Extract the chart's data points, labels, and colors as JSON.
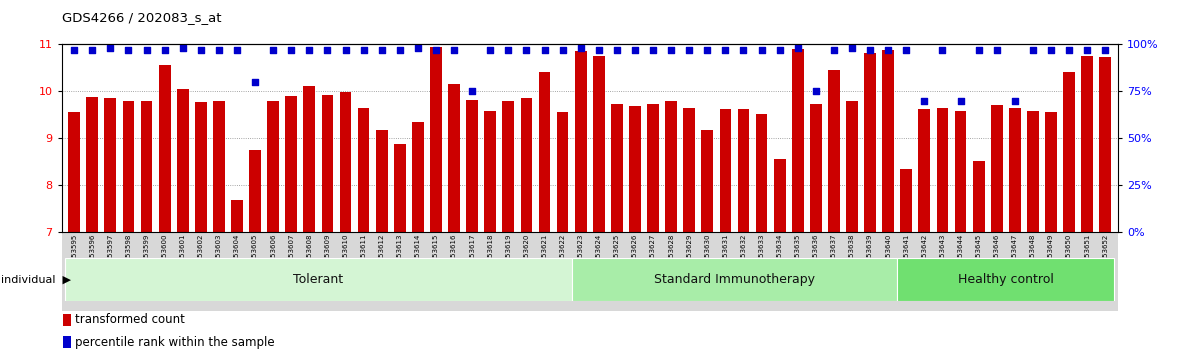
{
  "title": "GDS4266 / 202083_s_at",
  "samples": [
    "GSM553595",
    "GSM553596",
    "GSM553597",
    "GSM553598",
    "GSM553599",
    "GSM553600",
    "GSM553601",
    "GSM553602",
    "GSM553603",
    "GSM553604",
    "GSM553605",
    "GSM553606",
    "GSM553607",
    "GSM553608",
    "GSM553609",
    "GSM553610",
    "GSM553611",
    "GSM553612",
    "GSM553613",
    "GSM553614",
    "GSM553615",
    "GSM553616",
    "GSM553617",
    "GSM553618",
    "GSM553619",
    "GSM553620",
    "GSM553621",
    "GSM553622",
    "GSM553623",
    "GSM553624",
    "GSM553625",
    "GSM553626",
    "GSM553627",
    "GSM553628",
    "GSM553629",
    "GSM553630",
    "GSM553631",
    "GSM553632",
    "GSM553633",
    "GSM553634",
    "GSM553635",
    "GSM553636",
    "GSM553637",
    "GSM553638",
    "GSM553639",
    "GSM553640",
    "GSM553641",
    "GSM553642",
    "GSM553643",
    "GSM553644",
    "GSM553645",
    "GSM553646",
    "GSM553647",
    "GSM553648",
    "GSM553649",
    "GSM553650",
    "GSM553651",
    "GSM553652"
  ],
  "bar_heights": [
    9.55,
    9.88,
    9.86,
    9.78,
    9.78,
    10.55,
    10.05,
    9.76,
    9.78,
    7.68,
    8.75,
    9.8,
    9.9,
    10.12,
    9.92,
    9.98,
    9.65,
    9.18,
    8.88,
    9.35,
    10.95,
    10.15,
    9.82,
    9.58,
    9.8,
    9.85,
    10.4,
    9.55,
    10.85,
    10.75,
    9.72,
    9.68,
    9.72,
    9.8,
    9.65,
    9.18,
    9.62,
    9.62,
    9.52,
    8.55,
    10.9,
    9.72,
    10.45,
    9.78,
    10.82,
    10.88,
    8.35,
    9.62,
    9.65,
    9.58,
    8.52,
    9.7,
    9.65,
    9.58,
    9.55,
    10.4,
    10.75,
    10.72
  ],
  "percentile_values": [
    97,
    97,
    98,
    97,
    97,
    97,
    98,
    97,
    97,
    97,
    80,
    97,
    97,
    97,
    97,
    97,
    97,
    97,
    97,
    98,
    97,
    97,
    75,
    97,
    97,
    97,
    97,
    97,
    98,
    97,
    97,
    97,
    97,
    97,
    97,
    97,
    97,
    97,
    97,
    97,
    98,
    75,
    97,
    98,
    97,
    97,
    97,
    70,
    97,
    70,
    97,
    97,
    70,
    97,
    97,
    97,
    97,
    97
  ],
  "groups": [
    {
      "label": "Tolerant",
      "start": 0,
      "end": 27,
      "color": "#d4f5d4"
    },
    {
      "label": "Standard Immunotherapy",
      "start": 28,
      "end": 45,
      "color": "#a8eda8"
    },
    {
      "label": "Healthy control",
      "start": 46,
      "end": 57,
      "color": "#70e070"
    }
  ],
  "y_min": 7,
  "y_max": 11,
  "yticks_left": [
    7,
    8,
    9,
    10,
    11
  ],
  "yticks_right": [
    0,
    25,
    50,
    75,
    100
  ],
  "bar_color": "#cc0000",
  "dot_color": "#0000cc",
  "grid_color": "#888888",
  "tick_bg": "#d8d8d8"
}
